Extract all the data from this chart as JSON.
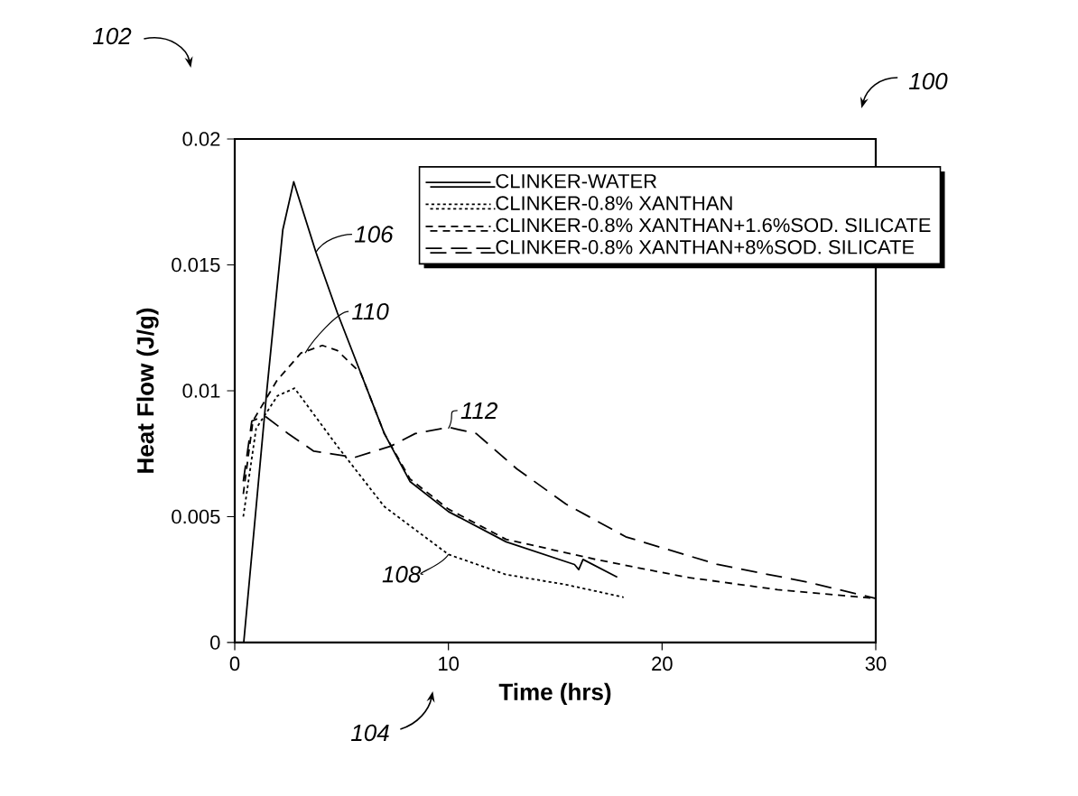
{
  "chart_data": {
    "type": "line",
    "xlabel": "Time (hrs)",
    "ylabel": "Heat Flow (J/g)",
    "xlim": [
      0,
      30
    ],
    "ylim": [
      0,
      0.02
    ],
    "xticks": [
      0,
      10,
      20,
      30
    ],
    "yticks": [
      0,
      0.005,
      0.01,
      0.015,
      0.02
    ],
    "grid": false,
    "legend": "top right",
    "marker": "none",
    "series": [
      {
        "name": "CLINKER-WATER",
        "color": "#000000",
        "line_style": "solid",
        "x": [
          0.42,
          1.5,
          2.25,
          2.76,
          3.8,
          4.8,
          5.9,
          7.0,
          8.2,
          10,
          12.7,
          15.9,
          16.1,
          16.3,
          17.9
        ],
        "values": [
          0,
          0.01,
          0.0164,
          0.0183,
          0.0155,
          0.0131,
          0.0107,
          0.0083,
          0.0064,
          0.0052,
          0.004,
          0.0031,
          0.0029,
          0.0033,
          0.0026
        ]
      },
      {
        "name": "CLINKER-0.8% XANTHAN",
        "color": "#000000",
        "line_style": "dotted",
        "x": [
          0.4,
          1.0,
          2.0,
          2.8,
          4.8,
          7.0,
          10,
          12.7,
          15.5,
          18.2
        ],
        "values": [
          0.005,
          0.0085,
          0.0098,
          0.0101,
          0.0078,
          0.0054,
          0.0035,
          0.0027,
          0.0023,
          0.0018
        ]
      },
      {
        "name": "CLINKER-0.8% XANTHAN+1.6%SOD. SILICATE",
        "color": "#000000",
        "line_style": "dashed",
        "x": [
          0.4,
          0.85,
          1.97,
          3.1,
          4.1,
          4.8,
          5.9,
          7.0,
          8.2,
          10,
          12.7,
          16.9,
          21.1,
          25.4,
          30
        ],
        "values": [
          0.0059,
          0.0088,
          0.0104,
          0.0115,
          0.0118,
          0.0116,
          0.0107,
          0.0083,
          0.0065,
          0.0053,
          0.0041,
          0.0033,
          0.0026,
          0.0021,
          0.00175
        ]
      },
      {
        "name": "CLINKER-0.8% XANTHAN+8%SOD. SILICATE",
        "color": "#000000",
        "line_style": "dashed",
        "x": [
          0.4,
          0.8,
          1.4,
          2.5,
          3.7,
          5.6,
          7.3,
          8.45,
          10,
          11.3,
          13.2,
          15.5,
          18.3,
          22.6,
          26.8,
          30
        ],
        "values": [
          0.0064,
          0.0088,
          0.009,
          0.0083,
          0.0076,
          0.00735,
          0.0078,
          0.0083,
          0.00855,
          0.0083,
          0.0069,
          0.0055,
          0.0042,
          0.0031,
          0.0024,
          0.00175
        ]
      }
    ],
    "annotations": [
      {
        "text": "106",
        "x": 3.8,
        "y": 0.0155
      },
      {
        "text": "110",
        "x": 3.3,
        "y": 0.0115
      },
      {
        "text": "112",
        "x": 10,
        "y": 0.0085
      },
      {
        "text": "108",
        "x": 10,
        "y": 0.0035
      },
      "102",
      "100",
      "104"
    ]
  }
}
